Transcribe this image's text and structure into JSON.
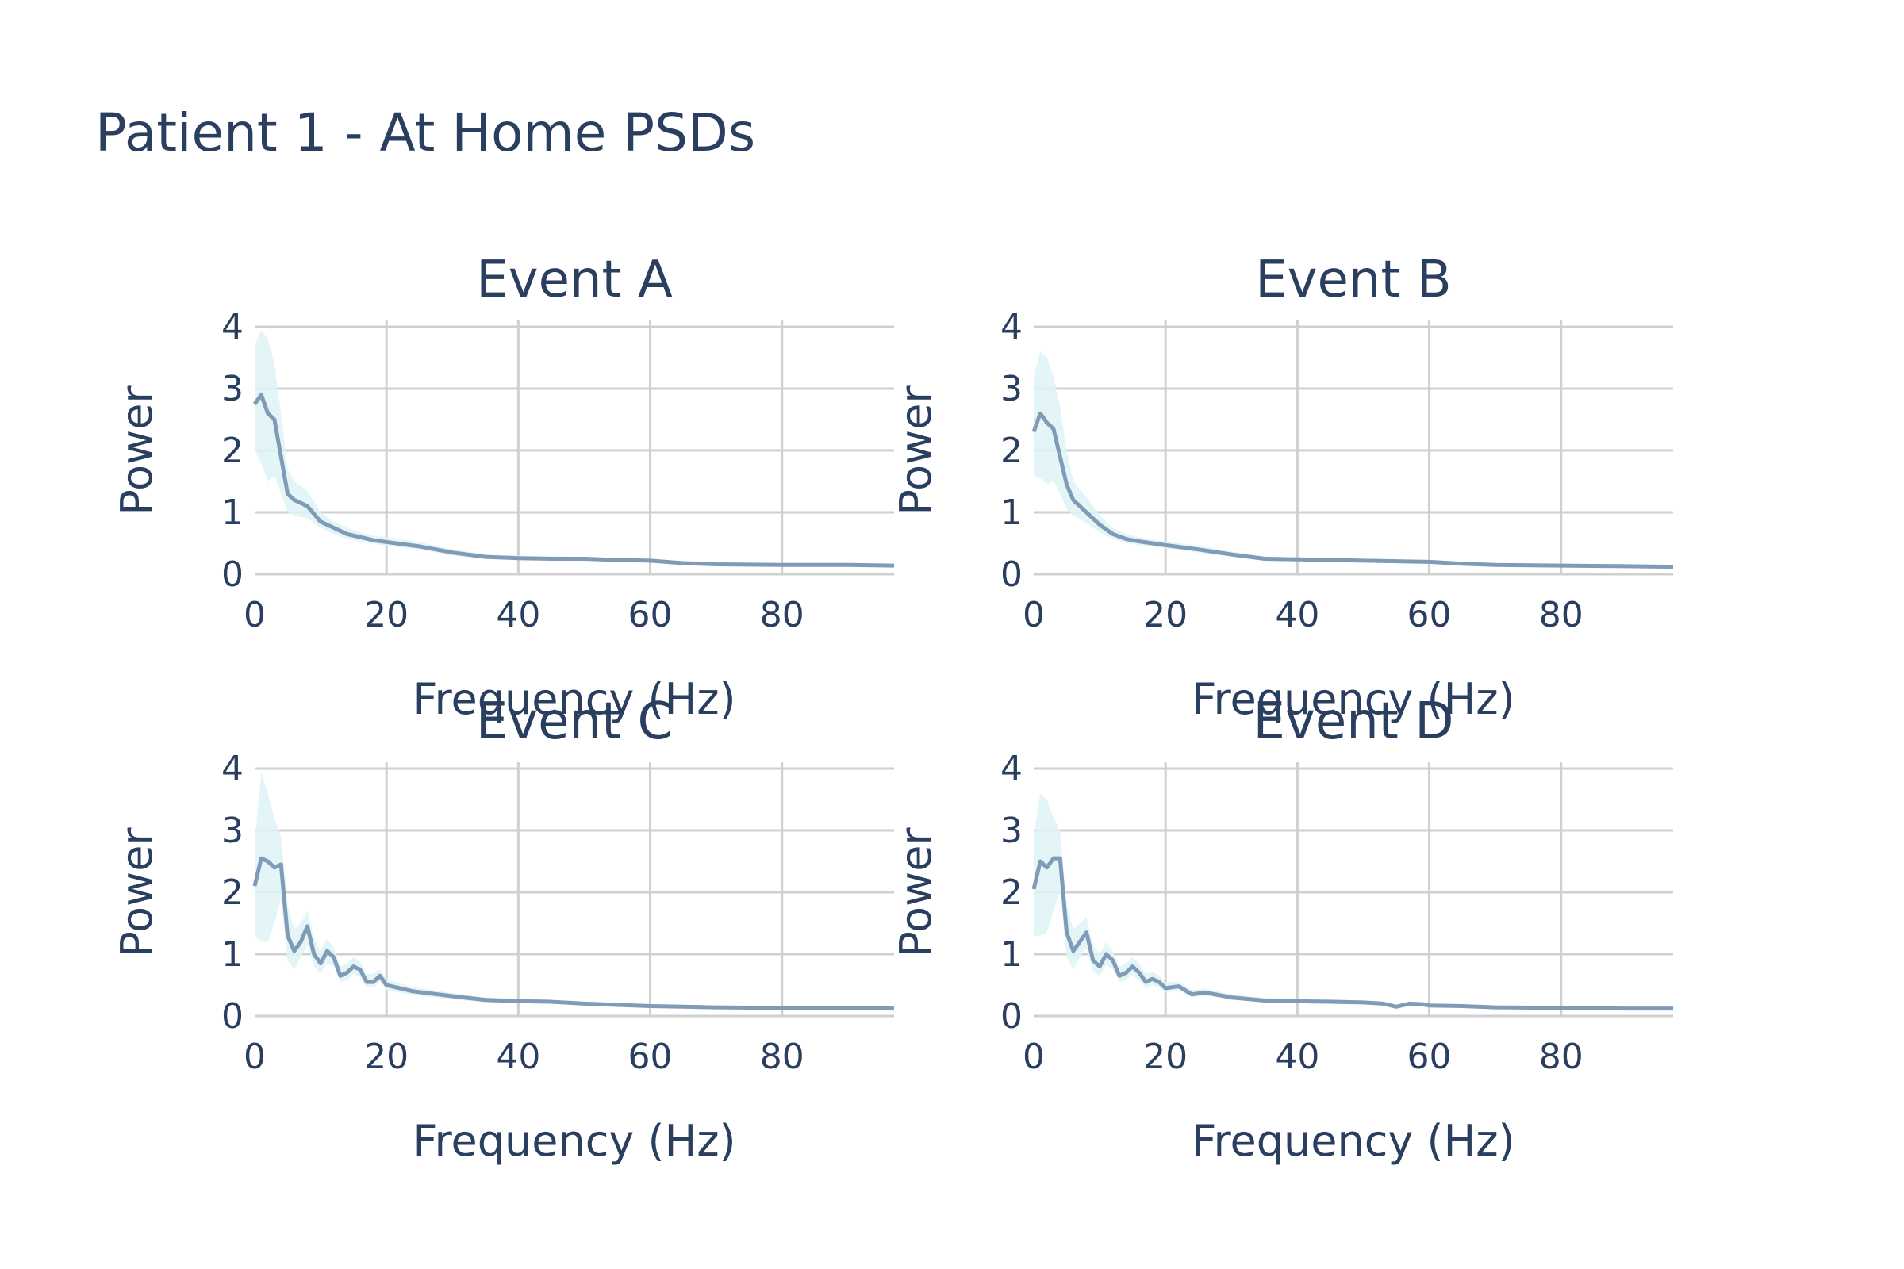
{
  "figure": {
    "title": "Patient 1 - At Home PSDs",
    "colors": {
      "line": "#7f9bb8",
      "band": "#dff3f6",
      "grid": "#d0d0d0",
      "text": "#2a3f5f"
    }
  },
  "chart_data": [
    {
      "type": "line",
      "title": "Event A",
      "xlabel": "Frequency (Hz)",
      "ylabel": "Power",
      "xlim": [
        0,
        97
      ],
      "ylim": [
        0,
        4
      ],
      "xticks": [
        "0",
        "20",
        "40",
        "60",
        "80"
      ],
      "yticks": [
        "0",
        "1",
        "2",
        "3",
        "4"
      ],
      "grid": true,
      "series": [
        {
          "x": [
            0,
            1,
            2,
            3,
            4,
            5,
            6,
            8,
            10,
            12,
            14,
            16,
            18,
            20,
            25,
            30,
            35,
            40,
            45,
            50,
            55,
            60,
            65,
            70,
            80,
            90,
            97
          ],
          "y": [
            2.75,
            2.9,
            2.6,
            2.5,
            1.9,
            1.3,
            1.2,
            1.1,
            0.85,
            0.75,
            0.65,
            0.6,
            0.55,
            0.52,
            0.45,
            0.35,
            0.28,
            0.26,
            0.25,
            0.25,
            0.23,
            0.22,
            0.18,
            0.16,
            0.15,
            0.15,
            0.14
          ],
          "upper": [
            3.7,
            3.95,
            3.8,
            3.4,
            2.6,
            1.7,
            1.5,
            1.35,
            1.0,
            0.85,
            0.75,
            0.68,
            0.62,
            0.6,
            0.52,
            0.4,
            0.32,
            0.3,
            0.29,
            0.28,
            0.26,
            0.25,
            0.21,
            0.19,
            0.18,
            0.17,
            0.16
          ],
          "lower": [
            2.0,
            1.8,
            1.5,
            1.6,
            1.3,
            1.0,
            0.95,
            0.9,
            0.75,
            0.65,
            0.57,
            0.53,
            0.49,
            0.46,
            0.4,
            0.3,
            0.25,
            0.23,
            0.22,
            0.22,
            0.2,
            0.19,
            0.16,
            0.14,
            0.13,
            0.13,
            0.12
          ]
        }
      ]
    },
    {
      "type": "line",
      "title": "Event B",
      "xlabel": "Frequency (Hz)",
      "ylabel": "Power",
      "xlim": [
        0,
        97
      ],
      "ylim": [
        0,
        4
      ],
      "xticks": [
        "0",
        "20",
        "40",
        "60",
        "80"
      ],
      "yticks": [
        "0",
        "1",
        "2",
        "3",
        "4"
      ],
      "grid": true,
      "series": [
        {
          "x": [
            0,
            1,
            2,
            3,
            4,
            5,
            6,
            8,
            10,
            12,
            14,
            16,
            18,
            20,
            25,
            30,
            35,
            40,
            45,
            50,
            55,
            60,
            65,
            70,
            80,
            90,
            97
          ],
          "y": [
            2.3,
            2.6,
            2.45,
            2.35,
            1.9,
            1.45,
            1.2,
            1.0,
            0.8,
            0.65,
            0.57,
            0.53,
            0.5,
            0.47,
            0.4,
            0.32,
            0.25,
            0.24,
            0.23,
            0.22,
            0.21,
            0.2,
            0.17,
            0.15,
            0.14,
            0.13,
            0.12
          ],
          "upper": [
            3.2,
            3.6,
            3.5,
            3.2,
            2.7,
            2.0,
            1.5,
            1.25,
            0.95,
            0.75,
            0.65,
            0.6,
            0.56,
            0.53,
            0.46,
            0.37,
            0.29,
            0.27,
            0.26,
            0.25,
            0.24,
            0.23,
            0.2,
            0.18,
            0.16,
            0.15,
            0.14
          ],
          "lower": [
            1.6,
            1.55,
            1.45,
            1.5,
            1.3,
            1.05,
            0.95,
            0.82,
            0.68,
            0.57,
            0.5,
            0.47,
            0.45,
            0.42,
            0.35,
            0.28,
            0.22,
            0.21,
            0.2,
            0.19,
            0.18,
            0.17,
            0.15,
            0.13,
            0.12,
            0.11,
            0.1
          ]
        }
      ]
    },
    {
      "type": "line",
      "title": "Event C",
      "xlabel": "Frequency (Hz)",
      "ylabel": "Power",
      "xlim": [
        0,
        97
      ],
      "ylim": [
        0,
        4
      ],
      "xticks": [
        "0",
        "20",
        "40",
        "60",
        "80"
      ],
      "yticks": [
        "0",
        "1",
        "2",
        "3",
        "4"
      ],
      "grid": true,
      "series": [
        {
          "x": [
            0,
            1,
            2,
            3,
            4,
            5,
            6,
            7,
            8,
            9,
            10,
            11,
            12,
            13,
            14,
            15,
            16,
            17,
            18,
            19,
            20,
            22,
            24,
            30,
            35,
            40,
            45,
            50,
            55,
            60,
            65,
            70,
            80,
            90,
            97
          ],
          "y": [
            2.1,
            2.55,
            2.5,
            2.4,
            2.45,
            1.3,
            1.05,
            1.2,
            1.45,
            1.0,
            0.85,
            1.05,
            0.95,
            0.65,
            0.7,
            0.8,
            0.75,
            0.55,
            0.55,
            0.65,
            0.5,
            0.45,
            0.4,
            0.32,
            0.26,
            0.24,
            0.23,
            0.2,
            0.18,
            0.16,
            0.15,
            0.14,
            0.13,
            0.13,
            0.12
          ],
          "upper": [
            2.8,
            3.95,
            3.6,
            3.2,
            2.9,
            1.8,
            1.4,
            1.5,
            1.7,
            1.25,
            1.05,
            1.25,
            1.1,
            0.8,
            0.85,
            0.95,
            0.88,
            0.68,
            0.68,
            0.75,
            0.6,
            0.53,
            0.47,
            0.37,
            0.3,
            0.28,
            0.26,
            0.23,
            0.21,
            0.19,
            0.17,
            0.16,
            0.15,
            0.15,
            0.14
          ],
          "lower": [
            1.3,
            1.2,
            1.2,
            1.5,
            1.9,
            0.9,
            0.75,
            0.95,
            1.15,
            0.8,
            0.7,
            0.85,
            0.8,
            0.55,
            0.58,
            0.68,
            0.62,
            0.46,
            0.46,
            0.55,
            0.42,
            0.38,
            0.34,
            0.27,
            0.22,
            0.21,
            0.2,
            0.17,
            0.16,
            0.14,
            0.13,
            0.12,
            0.11,
            0.11,
            0.1
          ]
        }
      ]
    },
    {
      "type": "line",
      "title": "Event D",
      "xlabel": "Frequency (Hz)",
      "ylabel": "Power",
      "xlim": [
        0,
        97
      ],
      "ylim": [
        0,
        4
      ],
      "xticks": [
        "0",
        "20",
        "40",
        "60",
        "80"
      ],
      "yticks": [
        "0",
        "1",
        "2",
        "3",
        "4"
      ],
      "grid": true,
      "series": [
        {
          "x": [
            0,
            1,
            2,
            3,
            4,
            5,
            6,
            7,
            8,
            9,
            10,
            11,
            12,
            13,
            14,
            15,
            16,
            17,
            18,
            19,
            20,
            22,
            24,
            26,
            30,
            35,
            40,
            45,
            50,
            53,
            55,
            57,
            59,
            60,
            65,
            70,
            80,
            90,
            97
          ],
          "y": [
            2.05,
            2.5,
            2.4,
            2.55,
            2.55,
            1.35,
            1.05,
            1.2,
            1.35,
            0.9,
            0.8,
            1.0,
            0.9,
            0.65,
            0.7,
            0.8,
            0.7,
            0.55,
            0.6,
            0.55,
            0.45,
            0.48,
            0.35,
            0.38,
            0.3,
            0.25,
            0.24,
            0.23,
            0.22,
            0.2,
            0.15,
            0.2,
            0.19,
            0.17,
            0.16,
            0.14,
            0.13,
            0.12,
            0.12
          ],
          "upper": [
            2.9,
            3.6,
            3.5,
            3.2,
            3.0,
            1.8,
            1.4,
            1.5,
            1.6,
            1.15,
            1.0,
            1.2,
            1.05,
            0.8,
            0.85,
            0.95,
            0.85,
            0.68,
            0.72,
            0.66,
            0.55,
            0.56,
            0.42,
            0.44,
            0.35,
            0.29,
            0.28,
            0.27,
            0.25,
            0.23,
            0.18,
            0.23,
            0.22,
            0.2,
            0.18,
            0.16,
            0.15,
            0.14,
            0.14
          ],
          "lower": [
            1.3,
            1.3,
            1.35,
            1.7,
            2.0,
            0.95,
            0.75,
            0.95,
            1.1,
            0.72,
            0.65,
            0.82,
            0.75,
            0.55,
            0.58,
            0.66,
            0.58,
            0.45,
            0.5,
            0.46,
            0.38,
            0.41,
            0.3,
            0.33,
            0.26,
            0.22,
            0.21,
            0.2,
            0.19,
            0.17,
            0.13,
            0.17,
            0.16,
            0.15,
            0.14,
            0.12,
            0.11,
            0.1,
            0.1
          ]
        }
      ]
    }
  ]
}
